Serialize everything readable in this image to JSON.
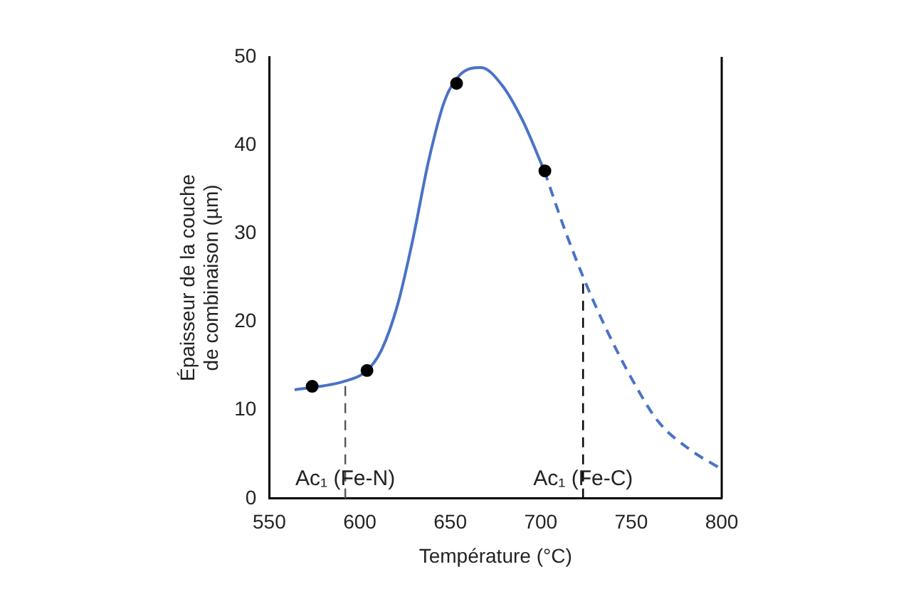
{
  "chart_data": {
    "type": "line",
    "xlabel": "Température (°C)",
    "ylabel": "Épaisseur de la couche\nde combinaison (µm)",
    "xlim": [
      550,
      800
    ],
    "xticks": [
      550,
      600,
      650,
      700,
      750,
      800
    ],
    "ylim": [
      0,
      50
    ],
    "yticks": [
      0,
      10,
      20,
      30,
      40,
      50
    ],
    "grid": false,
    "legend": false,
    "series": [
      {
        "color": "#4a72c8",
        "line_style": "solid",
        "marker": "none",
        "x": [
          564,
          592,
          604,
          612,
          621,
          629.5,
          638,
          647,
          655.5,
          667,
          678.6,
          690,
          702
        ],
        "values": [
          12.3,
          13.3,
          14.5,
          16.8,
          22,
          29.5,
          38.2,
          45.1,
          48,
          48.8,
          46.8,
          42.8,
          37.1
        ]
      },
      {
        "color": "#4a72c8",
        "line_style": "dashed",
        "marker": "none",
        "x": [
          702,
          713,
          723.4,
          736.4,
          751,
          765,
          782.7,
          798.5
        ],
        "values": [
          37.1,
          30.6,
          25.1,
          19.1,
          13.3,
          8.7,
          5.5,
          3.5
        ]
      },
      {
        "type": "scatter",
        "color": "#000000",
        "marker": "circle",
        "x": [
          573.7,
          604,
          653.5,
          702.3
        ],
        "values": [
          12.7,
          14.5,
          47,
          37.1
        ]
      }
    ],
    "ref_lines": [
      {
        "axis": "x",
        "value": 592,
        "label": "Ac₁ (Fe-N)",
        "color": "#555555",
        "line_style": "dashed"
      },
      {
        "axis": "x",
        "value": 723.4,
        "label": "Ac₁ (Fe-C)",
        "color": "#000000",
        "line_style": "dashed"
      }
    ]
  }
}
